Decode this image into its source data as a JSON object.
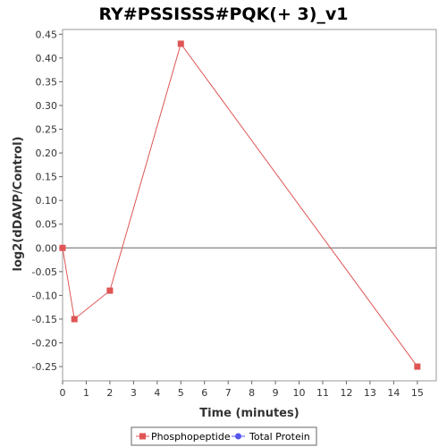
{
  "chart_data": {
    "type": "line",
    "title": "RY#PSSISSS#PQK(+ 3)_v1",
    "xlabel": "Time (minutes)",
    "ylabel": "log2(dDAVP/Control)",
    "xlim": [
      0,
      15.8
    ],
    "ylim": [
      -0.28,
      0.46
    ],
    "x_ticks": [
      "0",
      "1",
      "2",
      "3",
      "4",
      "5",
      "6",
      "7",
      "8",
      "9",
      "10",
      "11",
      "12",
      "13",
      "14",
      "15"
    ],
    "y_ticks": [
      "0.45",
      "0.40",
      "0.35",
      "0.30",
      "0.25",
      "0.20",
      "0.15",
      "0.10",
      "0.05",
      "0.00",
      "-0.05",
      "-0.10",
      "-0.15",
      "-0.20",
      "-0.25"
    ],
    "series": [
      {
        "name": "Phosphopeptide",
        "color": "#e05555",
        "marker": "square",
        "x": [
          0,
          0.5,
          2,
          5,
          15
        ],
        "y": [
          0.0,
          -0.15,
          -0.09,
          0.43,
          -0.25
        ]
      }
    ],
    "legend": {
      "position": "bottom",
      "items": [
        {
          "name": "Phosphopeptide",
          "color": "#e05555",
          "marker": "square"
        },
        {
          "name": "Total Protein",
          "color": "#5555ee",
          "marker": "circle"
        }
      ]
    },
    "zero_line": true,
    "grid": false
  }
}
